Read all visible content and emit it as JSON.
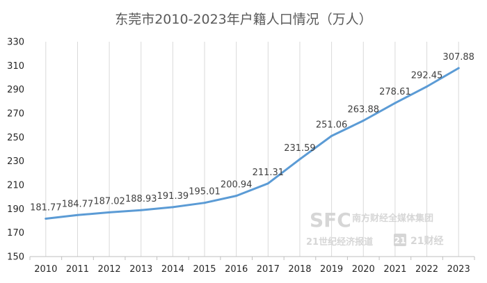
{
  "chart_data": {
    "type": "line",
    "title": "东莞市2010-2023年户籍人口情况（万人）",
    "xlabel": "",
    "ylabel": "",
    "categories": [
      "2010",
      "2011",
      "2012",
      "2013",
      "2014",
      "2015",
      "2016",
      "2017",
      "2018",
      "2019",
      "2020",
      "2021",
      "2022",
      "2023"
    ],
    "series": [
      {
        "values": [
          181.77,
          184.77,
          187.02,
          188.93,
          191.39,
          195.01,
          200.94,
          211.31,
          231.59,
          251.06,
          263.88,
          278.61,
          292.45,
          307.88
        ],
        "labels": [
          "181.77",
          "184.77",
          "187.02",
          "188.93",
          "191.39",
          "195.01",
          "200.94",
          "211.31",
          "231.59",
          "251.06",
          "263.88",
          "278.61",
          "292.45",
          "307.88"
        ]
      }
    ],
    "ylim": [
      150,
      330
    ],
    "yticks": [
      "150",
      "170",
      "190",
      "210",
      "230",
      "250",
      "270",
      "290",
      "310",
      "330"
    ],
    "ytick_values": [
      150,
      170,
      190,
      210,
      230,
      250,
      270,
      290,
      310,
      330
    ],
    "grid": "vertical",
    "legend": "none",
    "colors": {
      "line": "#5b9bd5",
      "grid": "#d9d9d9",
      "axis": "#bfbfbf"
    }
  },
  "watermark": {
    "sfc": "SFC",
    "brand": "南方财经全媒体集团",
    "paper": "21世纪经济报道",
    "badge": "21",
    "finance": "21财经"
  }
}
